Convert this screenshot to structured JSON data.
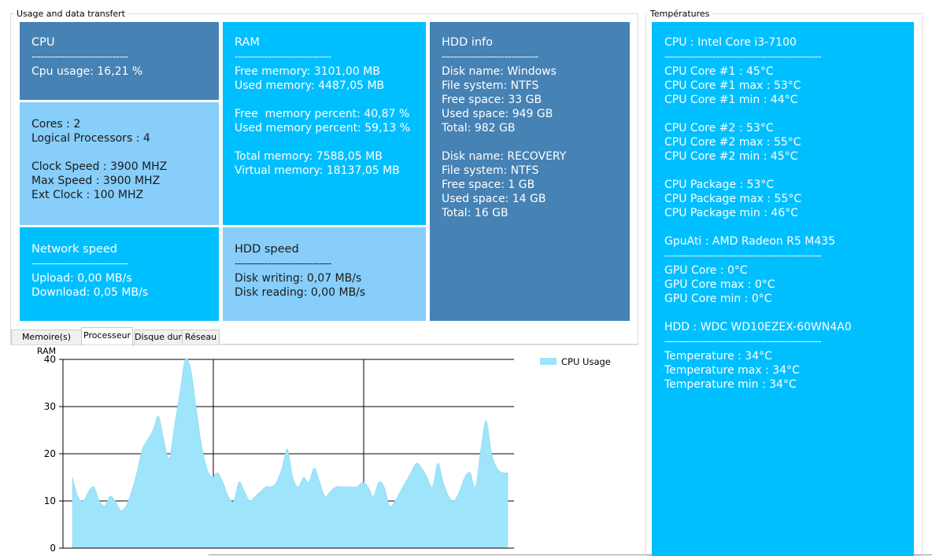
{
  "usage_group": {
    "title": "Usage and data transfert"
  },
  "temps_group": {
    "title": "Températures"
  },
  "cpu_tile": {
    "title": "CPU",
    "dashes": "--------------------------------",
    "usage": "Cpu usage: 16,21 %"
  },
  "cores_tile": {
    "cores": "Cores : 2",
    "logical": "Logical Processors : 4",
    "clock": "Clock Speed : 3900 MHZ",
    "max": "Max Speed : 3900 MHZ",
    "ext": "Ext Clock : 100 MHZ"
  },
  "ram_tile": {
    "title": "RAM",
    "dashes": "--------------------------------",
    "free": "Free memory: 3101,00 MB",
    "used": "Used memory: 4487,05 MB",
    "free_pct": "Free  memory percent: 40,87 %",
    "used_pct": "Used memory percent: 59,13 %",
    "total": "Total memory: 7588,05 MB",
    "virtual": "Virtual memory: 18137,05 MB"
  },
  "hdd_info_tile": {
    "title": "HDD info",
    "dashes": "--------------------------------",
    "d1_name": "Disk name: Windows",
    "d1_fs": "File system: NTFS",
    "d1_free": "Free space: 33 GB",
    "d1_used": "Used space: 949 GB",
    "d1_total": "Total: 982 GB",
    "d2_name": "Disk name: RECOVERY",
    "d2_fs": "File system: NTFS",
    "d2_free": "Free space: 1 GB",
    "d2_used": "Used space: 14 GB",
    "d2_total": "Total: 16 GB"
  },
  "network_tile": {
    "title": "Network speed",
    "dashes": "--------------------------------",
    "upload": "Upload: 0,00 MB/s",
    "download": "Download: 0,05 MB/s"
  },
  "hdd_speed_tile": {
    "title": "HDD speed",
    "dashes": "--------------------------------",
    "writing": "Disk writing: 0,07 MB/s",
    "reading": "Disk reading: 0,00 MB/s"
  },
  "tabs": [
    "Memoire(s) RAM",
    "Processeur",
    "Disque dur",
    "Réseau"
  ],
  "active_tab": "Processeur",
  "temperatures": {
    "cpu_title": "CPU : Intel Core i3-7100",
    "dashes": "----------------------------------------------------",
    "core1": "CPU Core #1 : 45°C",
    "core1_max": "CPU Core #1 max : 53°C",
    "core1_min": "CPU Core #1 min : 44°C",
    "core2": "CPU Core #2 : 53°C",
    "core2_max": "CPU Core #2 max : 55°C",
    "core2_min": "CPU Core #2 min : 45°C",
    "pkg": "CPU Package : 53°C",
    "pkg_max": "CPU Package max : 55°C",
    "pkg_min": "CPU Package min : 46°C",
    "gpu_title": "GpuAti : AMD Radeon R5 M435",
    "gpu": "GPU Core : 0°C",
    "gpu_max": "GPU Core max : 0°C",
    "gpu_min": "GPU Core min : 0°C",
    "hdd_title": "HDD : WDC WD10EZEX-60WN4A0",
    "hdd": "Temperature : 34°C",
    "hdd_max": "Temperature max : 34°C",
    "hdd_min": "Temperature min : 34°C"
  },
  "colors": {
    "steel_blue": "#4682b4",
    "light_sky_blue": "#87cefa",
    "deep_sky_blue": "#00bfff",
    "area_fill": "#9ee4fa"
  },
  "chart_data": {
    "type": "area",
    "series": [
      {
        "name": "CPU Usage",
        "values": [
          15,
          11,
          10,
          12,
          13,
          10,
          9,
          11,
          10,
          8,
          9,
          12,
          16,
          21,
          23,
          25,
          28,
          23,
          19,
          26,
          33,
          40,
          38,
          30,
          22,
          17,
          15,
          16,
          14,
          11,
          10,
          14,
          12,
          10,
          11,
          12,
          13,
          13,
          14,
          17,
          21,
          15,
          13,
          15,
          14,
          17,
          14,
          11,
          12,
          13,
          13,
          13,
          13,
          13,
          14,
          13,
          11,
          14,
          13,
          9,
          10,
          12,
          14,
          16,
          18,
          17,
          15,
          13,
          18,
          14,
          11,
          10,
          12,
          15,
          16,
          13,
          21,
          27,
          20,
          17,
          16,
          16
        ]
      }
    ],
    "ylim": [
      0,
      40
    ],
    "yticks": [
      0,
      10,
      20,
      30,
      40
    ],
    "grid": true,
    "legend_position": "top-right"
  }
}
